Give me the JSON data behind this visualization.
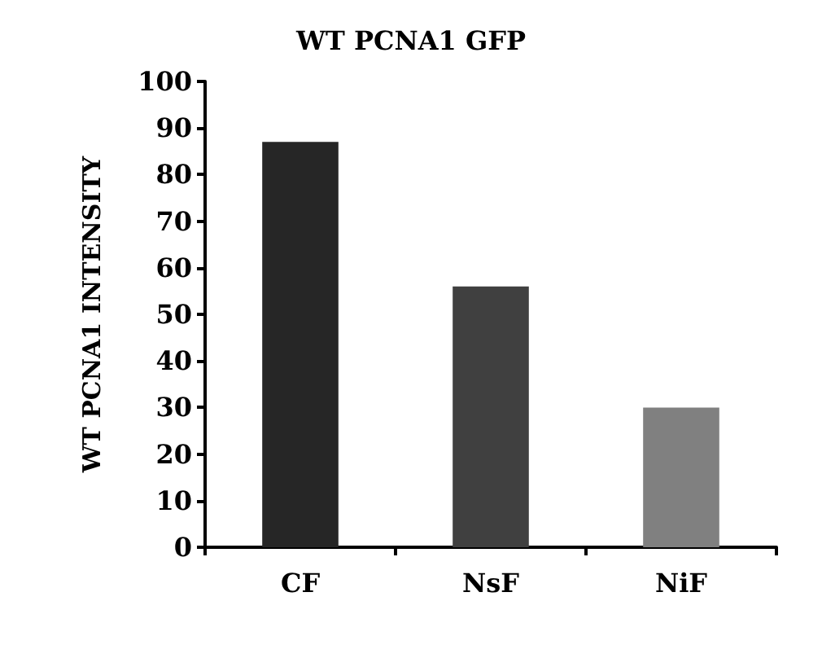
{
  "chart_data": {
    "type": "bar",
    "title": "WT PCNA1 GFP",
    "ylabel": "WT PCNA1 INTENSITY",
    "categories": [
      "CF",
      "NsF",
      "NiF"
    ],
    "values": [
      87,
      56,
      30
    ],
    "colors": [
      "#262626",
      "#404040",
      "#808080"
    ],
    "ylim": [
      0,
      100
    ],
    "yticks": [
      0,
      10,
      20,
      30,
      40,
      50,
      60,
      70,
      80,
      90,
      100
    ]
  }
}
